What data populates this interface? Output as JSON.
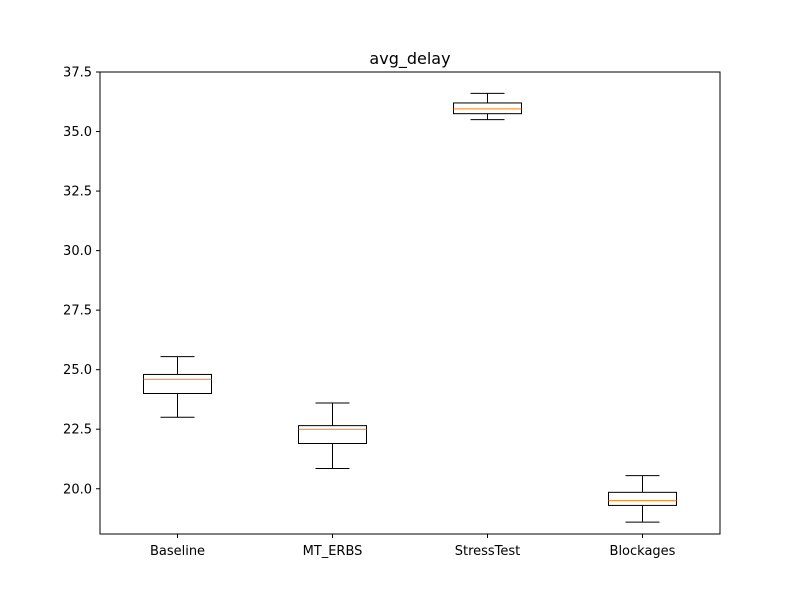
{
  "chart_data": {
    "type": "box",
    "title": "avg_delay",
    "xlabel": "",
    "ylabel": "",
    "ylim": [
      18.1,
      37.5
    ],
    "yticks": [
      "20.0",
      "22.5",
      "25.0",
      "27.5",
      "30.0",
      "32.5",
      "35.0",
      "37.5"
    ],
    "grid": false,
    "categories": [
      "Baseline",
      "MT_ERBS",
      "StressTest",
      "Blockages"
    ],
    "boxes": [
      {
        "name": "Baseline",
        "whisker_low": 23.0,
        "q1": 24.0,
        "median": 24.6,
        "q3": 24.8,
        "whisker_high": 25.55
      },
      {
        "name": "MT_ERBS",
        "whisker_low": 20.85,
        "q1": 21.9,
        "median": 22.5,
        "q3": 22.65,
        "whisker_high": 23.6
      },
      {
        "name": "StressTest",
        "whisker_low": 35.5,
        "q1": 35.75,
        "median": 35.95,
        "q3": 36.2,
        "whisker_high": 36.6
      },
      {
        "name": "Blockages",
        "whisker_low": 18.6,
        "q1": 19.3,
        "median": 19.5,
        "q3": 19.85,
        "whisker_high": 20.55
      }
    ],
    "colors": {
      "box": "#000000",
      "median": "#ff7f0e",
      "frame": "#000000"
    }
  }
}
